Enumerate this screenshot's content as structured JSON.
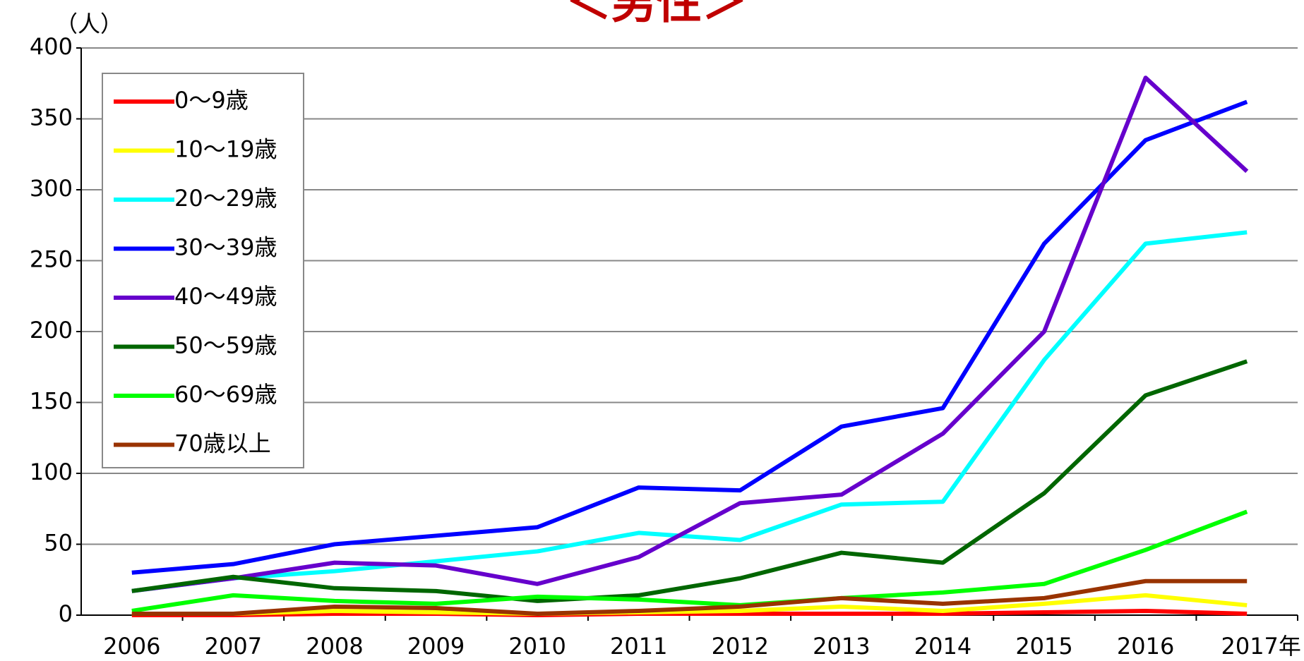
{
  "chart_data": {
    "type": "line",
    "title": "＜男性＞",
    "y_label": "（人）",
    "categories": [
      "2006",
      "2007",
      "2008",
      "2009",
      "2010",
      "2011",
      "2012",
      "2013",
      "2014",
      "2015",
      "2016",
      "2017年"
    ],
    "ylim": [
      0,
      400
    ],
    "yticks": [
      0,
      50,
      100,
      150,
      200,
      250,
      300,
      350,
      400
    ],
    "grid": true,
    "legend": "upper left",
    "series": [
      {
        "name": "0～9歳",
        "color": "#ff0000",
        "values": [
          0,
          0,
          1,
          1,
          0,
          1,
          1,
          1,
          1,
          2,
          3,
          1
        ]
      },
      {
        "name": "10～19歳",
        "color": "#ffff00",
        "values": [
          1,
          1,
          3,
          2,
          1,
          2,
          3,
          6,
          3,
          8,
          14,
          7
        ]
      },
      {
        "name": "20～29歳",
        "color": "#00ffff",
        "values": [
          17,
          26,
          31,
          38,
          45,
          58,
          53,
          78,
          80,
          180,
          262,
          270
        ]
      },
      {
        "name": "30～39歳",
        "color": "#0000ff",
        "values": [
          30,
          36,
          50,
          56,
          62,
          90,
          88,
          133,
          146,
          262,
          335,
          362
        ]
      },
      {
        "name": "40～49歳",
        "color": "#6600cc",
        "values": [
          17,
          26,
          37,
          35,
          22,
          41,
          79,
          85,
          128,
          200,
          379,
          313
        ]
      },
      {
        "name": "50～59歳",
        "color": "#006600",
        "values": [
          17,
          27,
          19,
          17,
          10,
          14,
          26,
          44,
          37,
          86,
          155,
          179
        ]
      },
      {
        "name": "60～69歳",
        "color": "#00ff00",
        "values": [
          3,
          14,
          10,
          8,
          13,
          11,
          7,
          12,
          16,
          22,
          46,
          73
        ]
      },
      {
        "name": "70歳以上",
        "color": "#993300",
        "values": [
          1,
          1,
          6,
          5,
          1,
          3,
          6,
          12,
          8,
          12,
          24,
          24
        ]
      }
    ]
  }
}
